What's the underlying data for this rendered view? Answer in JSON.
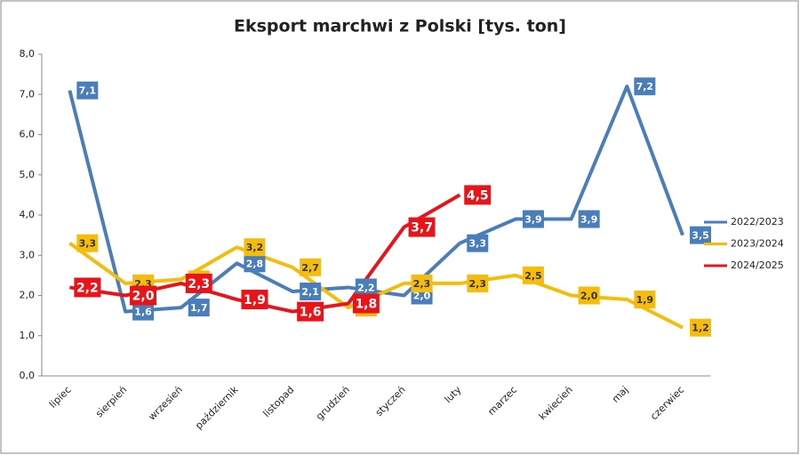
{
  "chart_data": {
    "type": "line",
    "title": "Eksport marchwi z Polski [tys. ton]",
    "categories": [
      "lipiec",
      "sierpień",
      "wrzesień",
      "październik",
      "listopad",
      "grudzień",
      "styczeń",
      "luty",
      "marzec",
      "kwiecień",
      "maj",
      "czerwiec"
    ],
    "series": [
      {
        "name": "2022/2023",
        "color": "#4a7ebb",
        "values": [
          7.1,
          1.6,
          1.7,
          2.8,
          2.1,
          2.2,
          2.0,
          3.3,
          3.9,
          3.9,
          7.2,
          3.5
        ],
        "value_labels": [
          "7,1",
          "1,6",
          "1,7",
          "2,8",
          "2,1",
          "2,2",
          "2,0",
          "3,3",
          "3,9",
          "3,9",
          "7,2",
          "3,5"
        ]
      },
      {
        "name": "2023/2024",
        "color": "#f5bd0a",
        "values": [
          3.3,
          2.3,
          2.4,
          3.2,
          2.7,
          1.7,
          2.3,
          2.3,
          2.5,
          2.0,
          1.9,
          1.2
        ],
        "value_labels": [
          "3,3",
          "2,3",
          "2,4",
          "3,2",
          "2,7",
          "1,7",
          "2,3",
          "2,3",
          "2,5",
          "2,0",
          "1,9",
          "1,2"
        ]
      },
      {
        "name": "2024/2025",
        "color": "#e8141a",
        "values": [
          2.2,
          2.0,
          2.3,
          1.9,
          1.6,
          1.8,
          3.7,
          4.5,
          null,
          null,
          null,
          null
        ],
        "value_labels": [
          "2,2",
          "2,0",
          "2,3",
          "1,9",
          "1,6",
          "1,8",
          "3,7",
          "4,5",
          null,
          null,
          null,
          null
        ]
      }
    ],
    "ylim": [
      0,
      8
    ],
    "yticks": [
      {
        "value": 0,
        "label": "0,0"
      },
      {
        "value": 1,
        "label": "1,0"
      },
      {
        "value": 2,
        "label": "2,0"
      },
      {
        "value": 3,
        "label": "3,0"
      },
      {
        "value": 4,
        "label": "4,0"
      },
      {
        "value": 5,
        "label": "5,0"
      },
      {
        "value": 6,
        "label": "6,0"
      },
      {
        "value": 7,
        "label": "7,0"
      },
      {
        "value": 8,
        "label": "8,0"
      }
    ],
    "legend": "right"
  }
}
